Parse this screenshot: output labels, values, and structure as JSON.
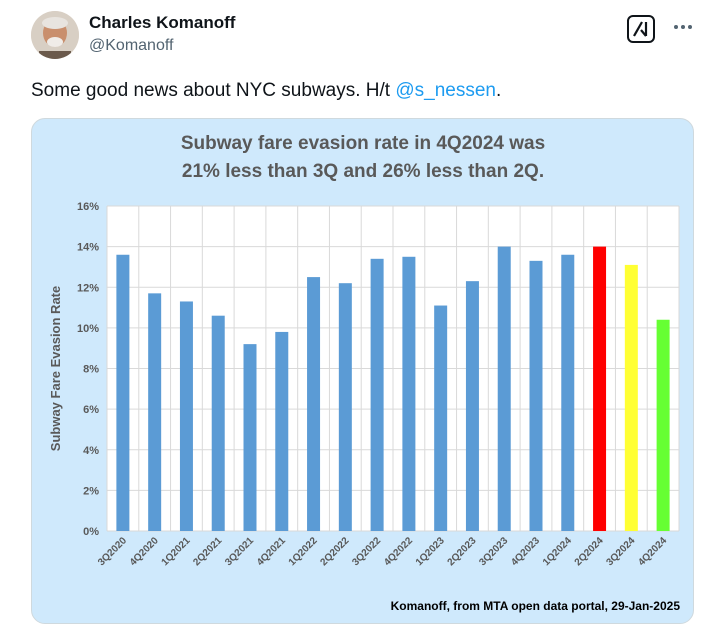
{
  "tweet": {
    "author_name": "Charles Komanoff",
    "author_handle": "@Komanoff",
    "text_before": "Some good news about NYC subways. H/t ",
    "mention": "@s_nessen",
    "text_after": ".",
    "avatar_icon": "user-photo-avatar",
    "grok_icon": "grok-icon",
    "more_icon": "more-horizontal-icon"
  },
  "chart_data": {
    "type": "bar",
    "title_lines": [
      "Subway fare evasion rate in 4Q2024 was",
      "21% less than 3Q and 26% less than 2Q."
    ],
    "ylabel": "Subway Fare Evasion Rate",
    "xlabel": "",
    "ylim": [
      0,
      0.16
    ],
    "yticks": [
      "0%",
      "2%",
      "4%",
      "6%",
      "8%",
      "10%",
      "12%",
      "14%",
      "16%"
    ],
    "grid": true,
    "categories": [
      "3Q2020",
      "4Q2020",
      "1Q2021",
      "2Q2021",
      "3Q2021",
      "4Q2021",
      "1Q2022",
      "2Q2022",
      "3Q2022",
      "4Q2022",
      "1Q2023",
      "2Q2023",
      "3Q2023",
      "4Q2023",
      "1Q2024",
      "2Q2024",
      "3Q2024",
      "4Q2024"
    ],
    "values": [
      0.136,
      0.117,
      0.113,
      0.106,
      0.092,
      0.098,
      0.125,
      0.122,
      0.134,
      0.135,
      0.111,
      0.123,
      0.14,
      0.133,
      0.136,
      0.14,
      0.131,
      0.104
    ],
    "colors": [
      "#5b9bd5",
      "#5b9bd5",
      "#5b9bd5",
      "#5b9bd5",
      "#5b9bd5",
      "#5b9bd5",
      "#5b9bd5",
      "#5b9bd5",
      "#5b9bd5",
      "#5b9bd5",
      "#5b9bd5",
      "#5b9bd5",
      "#5b9bd5",
      "#5b9bd5",
      "#5b9bd5",
      "#ff0000",
      "#ffff33",
      "#66ff33"
    ],
    "source": "Komanoff, from MTA open data portal, 29-Jan-2025"
  }
}
